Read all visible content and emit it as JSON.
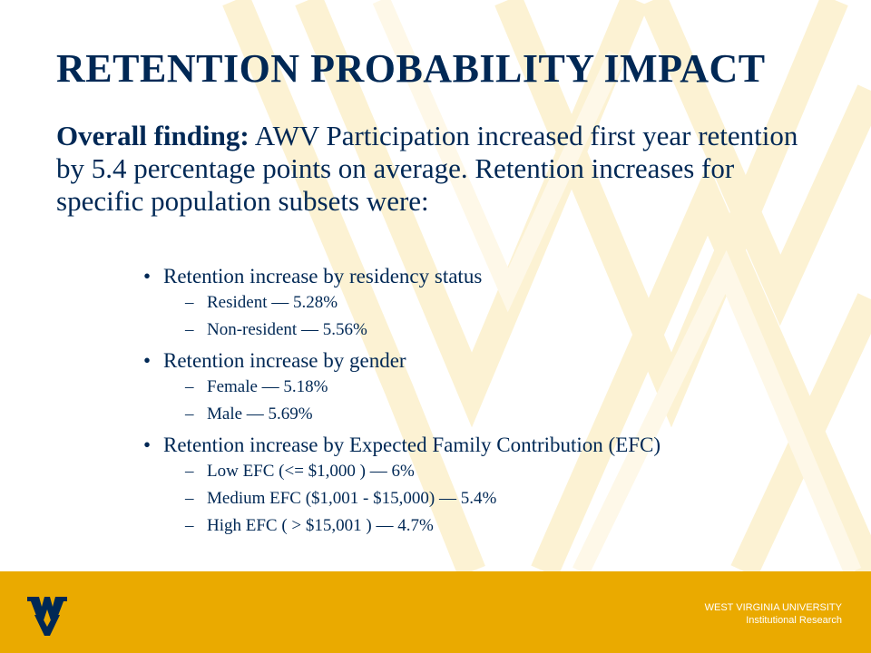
{
  "slide": {
    "title": "RETENTION PROBABILITY IMPACT",
    "finding_lead": "Overall finding:",
    "finding_text": " AWV Participation increased first year retention by 5.4 percentage points on average. Retention increases for specific population subsets were:",
    "bullet_glyph": "•",
    "dash_glyph": "–",
    "groups": [
      {
        "label": "Retention increase by residency status",
        "items": [
          "Resident — 5.28%",
          "Non-resident — 5.56%"
        ]
      },
      {
        "label": "Retention increase by gender",
        "items": [
          "Female — 5.18%",
          "Male — 5.69%"
        ]
      },
      {
        "label": "Retention increase by Expected Family Contribution (EFC)",
        "items": [
          "Low EFC (<= $1,000 ) — 6%",
          "Medium  EFC ($1,001 - $15,000) — 5.4%",
          "High EFC ( > $15,001 ) — 4.7%"
        ]
      }
    ]
  },
  "footer": {
    "university": "WEST VIRGINIA UNIVERSITY",
    "department": "Institutional Research",
    "logo_icon": "flying-wv-logo-icon"
  },
  "colors": {
    "navy": "#002855",
    "gold": "#EAAA00",
    "background_chevrons": "#FCF2D3"
  }
}
